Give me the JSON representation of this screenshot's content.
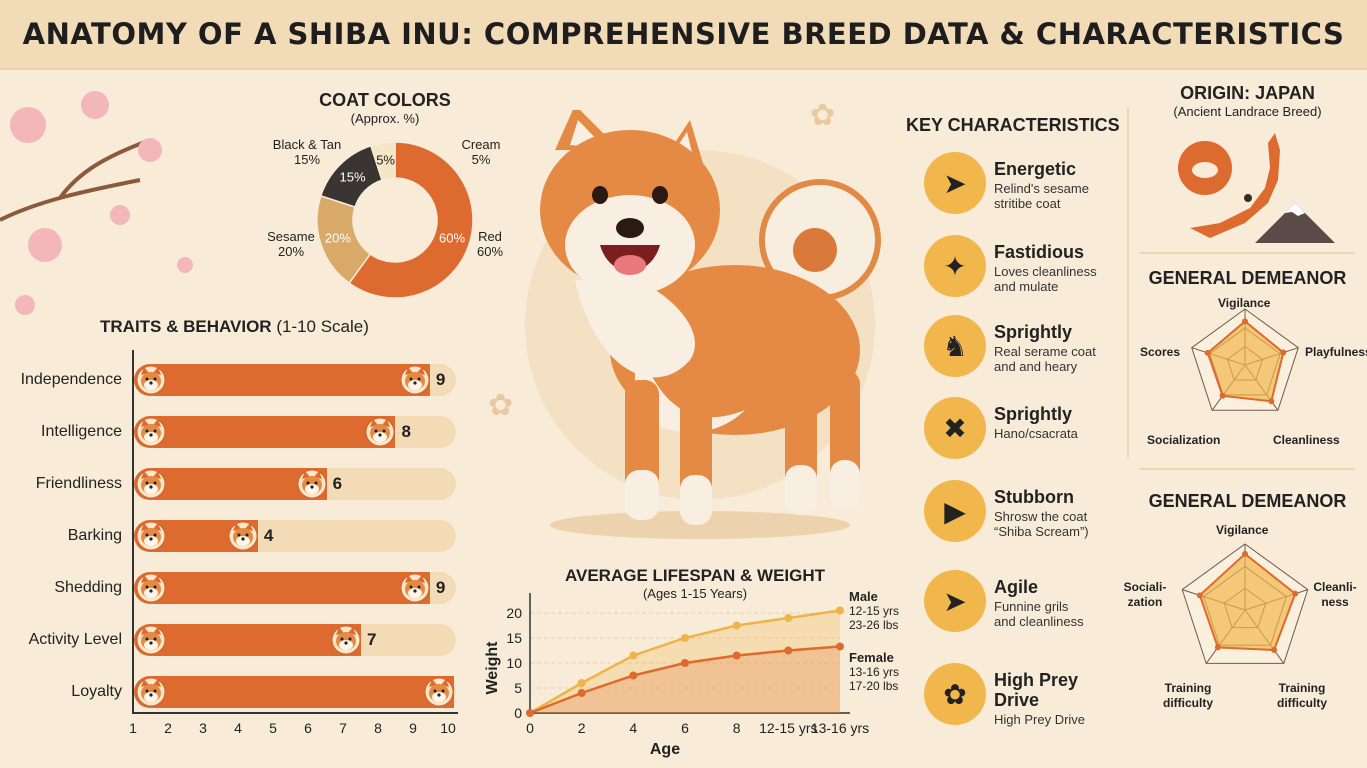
{
  "title": "ANATOMY OF A SHIBA INU: COMPREHENSIVE BREED DATA & CHARACTERISTICS",
  "coat": {
    "heading": "COAT COLORS",
    "sub": "(Approx. %)",
    "slices": [
      {
        "name": "Red",
        "value": 60,
        "label": "60%",
        "outer": "Red",
        "outerPct": "60%",
        "color": "#dd6a2f"
      },
      {
        "name": "Sesame",
        "value": 20,
        "label": "20%",
        "outer": "Sesame",
        "outerPct": "20%",
        "color": "#d9a96a"
      },
      {
        "name": "Black & Tan",
        "value": 15,
        "label": "15%",
        "outer": "Black & Tan",
        "outerPct": "15%",
        "color": "#3a3533"
      },
      {
        "name": "Cream",
        "value": 5,
        "label": "5%",
        "outer": "Cream",
        "outerPct": "5%",
        "color": "#f5e6c8"
      }
    ]
  },
  "traits": {
    "heading": "TRAITS & BEHAVIOR",
    "scale": "(1-10 Scale)",
    "items": [
      {
        "label": "Independence",
        "value": 9
      },
      {
        "label": "Intelligence",
        "value": 8
      },
      {
        "label": "Friendliness",
        "value": 6
      },
      {
        "label": "Barking",
        "value": 4
      },
      {
        "label": "Shedding",
        "value": 9
      },
      {
        "label": "Activity Level",
        "value": 7
      },
      {
        "label": "Loyalty",
        "value": 10
      }
    ],
    "ticks": [
      "1",
      "2",
      "3",
      "4",
      "5",
      "6",
      "7",
      "8",
      "9",
      "10"
    ]
  },
  "lifespan": {
    "heading": "AVERAGE LIFESPAN & WEIGHT",
    "sub": "(Ages 1-15 Years)",
    "xlabel": "Age",
    "ylabel": "Weight",
    "xticks": [
      "0",
      "2",
      "4",
      "6",
      "8",
      "12-15 yrs",
      "13-16 yrs"
    ],
    "yticks": [
      "0",
      "5",
      "10",
      "15",
      "20"
    ],
    "male": {
      "label": "Male",
      "years": "12-15 yrs",
      "weight": "23-26 lbs",
      "color": "#eeb44a"
    },
    "female": {
      "label": "Female",
      "years": "13-16 yrs",
      "weight": "17-20 lbs",
      "color": "#dd6a2f"
    }
  },
  "chart_data": {
    "type": "area",
    "title": "AVERAGE LIFESPAN & WEIGHT",
    "subtitle": "(Ages 1-15 Years)",
    "xlabel": "Age",
    "ylabel": "Weight",
    "categories": [
      "0",
      "2",
      "4",
      "6",
      "8",
      "12-15 yrs",
      "13-16 yrs"
    ],
    "ylim": [
      0,
      22
    ],
    "series": [
      {
        "name": "Male",
        "values": [
          0,
          6,
          11.5,
          15,
          17.5,
          19,
          20.5
        ]
      },
      {
        "name": "Female",
        "values": [
          0,
          4,
          7.5,
          10,
          11.5,
          12.5,
          13.3
        ]
      }
    ]
  },
  "key": {
    "heading": "KEY CHARACTERISTICS",
    "items": [
      {
        "title": "Energetic",
        "desc1": "Relind's sesame",
        "desc2": "stritibe coat",
        "icon": "running-person-icon"
      },
      {
        "title": "Fastidious",
        "desc1": "Loves cleanliness",
        "desc2": "and mulate",
        "icon": "sparkle-icon"
      },
      {
        "title": "Sprightly",
        "desc1": "Real serame coat",
        "desc2": "and and heary",
        "icon": "dog-walk-icon"
      },
      {
        "title": "Sprightly",
        "desc1": "Hano/csacrata",
        "desc2": "",
        "icon": "scream-face-icon"
      },
      {
        "title": "Stubborn",
        "desc1": "Shrosw the coat",
        "desc2": "“Shiba Scream”)",
        "icon": "megaphone-icon"
      },
      {
        "title": "Agile",
        "desc1": "Funnine grils",
        "desc2": "and cleanliness",
        "icon": "sprinting-icon"
      },
      {
        "title": "High Prey",
        "title2": "Drive",
        "desc1": "High Prey Drive",
        "desc2": "",
        "icon": "paw-icon"
      }
    ]
  },
  "origin": {
    "heading": "ORIGIN: JAPAN",
    "sub": "(Ancient Landrace Breed)"
  },
  "demeanor1": {
    "heading": "GENERAL DEMEANOR",
    "labels": [
      "Vigilance",
      "Playfulness",
      "Cleanliness",
      "Socialization",
      "Scores"
    ],
    "values": [
      0.78,
      0.72,
      0.8,
      0.68,
      0.7
    ]
  },
  "demeanor2": {
    "heading": "GENERAL DEMEANOR",
    "labels": [
      "Vigilance",
      "Cleanli-\nness",
      "Training\ndifficulty",
      "Training\ndifficulty",
      "Sociali-\nzation"
    ],
    "values": [
      0.85,
      0.8,
      0.75,
      0.7,
      0.72
    ]
  },
  "colors": {
    "orange": "#dd6a2f",
    "gold": "#f1b74d",
    "cream": "#f8ecd9",
    "tan": "#f3dcb5"
  }
}
